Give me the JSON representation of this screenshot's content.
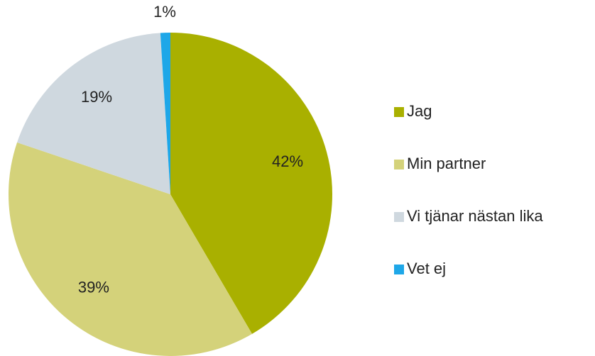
{
  "chart_data": {
    "type": "pie",
    "categories": [
      "Jag",
      "Min partner",
      "Vi tjänar nästan lika",
      "Vet ej"
    ],
    "values": [
      42,
      39,
      19,
      1
    ],
    "value_labels": [
      "42%",
      "39%",
      "19%",
      "1%"
    ],
    "colors": [
      "#a9b000",
      "#d4d27a",
      "#cfd8df",
      "#1ea7e8"
    ],
    "legend": "right"
  }
}
